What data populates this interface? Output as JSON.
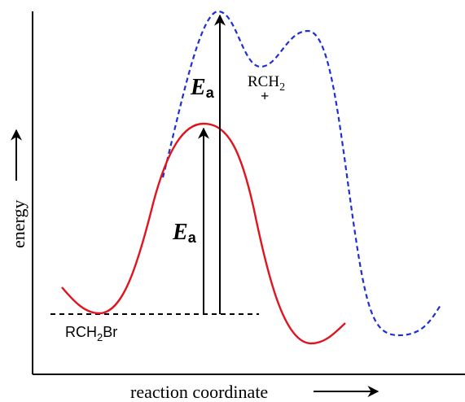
{
  "axes": {
    "y_label": "energy",
    "x_label": "reaction coordinate"
  },
  "labels": {
    "reactant": {
      "prefix": "RCH",
      "sub": "2",
      "suffix": "Br"
    },
    "intermediate": {
      "prefix": "RCH",
      "sub": "2",
      "charge": "+"
    },
    "ea_upper": {
      "main": "E",
      "sub": "a"
    },
    "ea_lower": {
      "main": "E",
      "sub": "a"
    }
  },
  "colors": {
    "axis": "#000000",
    "catalyzed_curve": "#e0141e",
    "uncatalyzed_curve": "#1f2fd6",
    "arrow": "#000000"
  }
}
